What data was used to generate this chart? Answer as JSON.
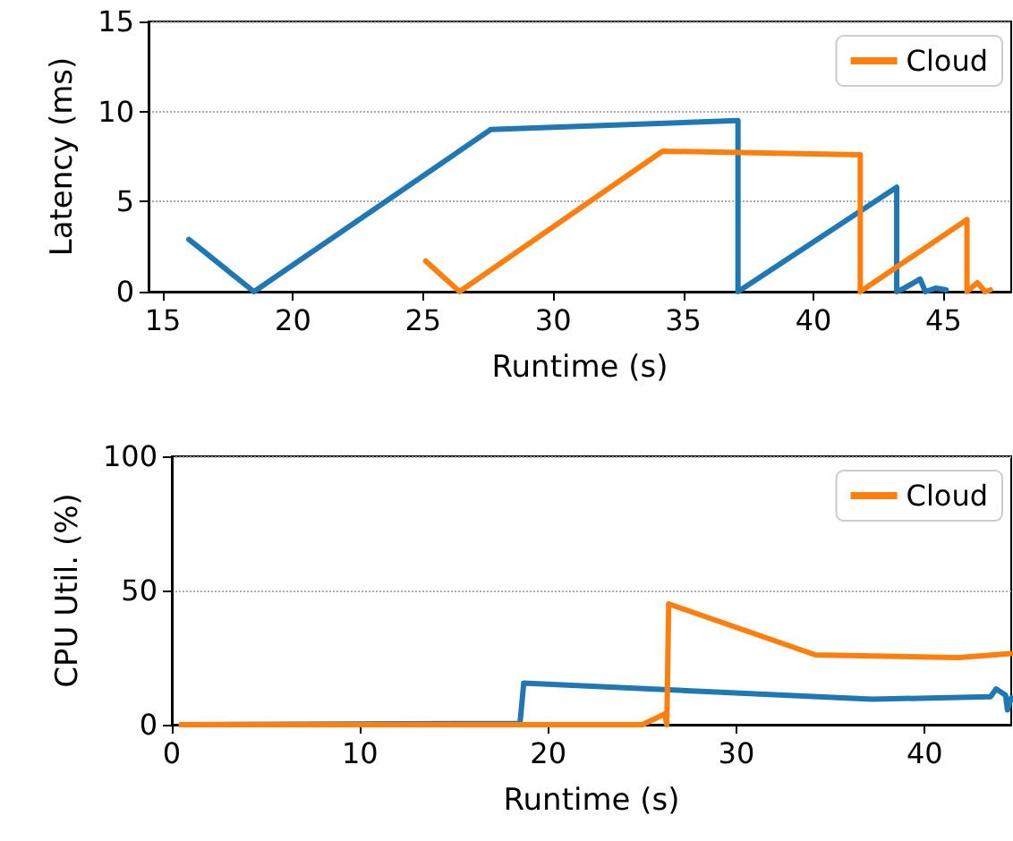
{
  "chart_data": [
    {
      "type": "line",
      "xlabel": "Runtime (s)",
      "ylabel": "Latency (ms)",
      "xlim": [
        14.45,
        47.6
      ],
      "xticks": [
        15,
        20,
        25,
        30,
        35,
        40,
        45
      ],
      "ylim": [
        0,
        15
      ],
      "yticks": [
        0,
        5,
        10,
        15
      ],
      "grid": "y",
      "legend": "top right",
      "series": [
        {
          "color": "#1f77b4",
          "x": [
            16,
            18.5,
            27.6,
            37.1,
            37.1,
            43.2,
            43.2,
            43.5,
            44.1,
            44.3,
            44.7,
            45.1
          ],
          "values": [
            2.9,
            0,
            9.0,
            9.5,
            0,
            5.8,
            0,
            0.2,
            0.7,
            0,
            0.2,
            0.1
          ]
        },
        {
          "name": "Cloud",
          "color": "#ff7f0e",
          "x": [
            25.1,
            26.4,
            34.2,
            41.8,
            41.8,
            45.9,
            45.9,
            46.3,
            46.6,
            46.8
          ],
          "values": [
            1.7,
            0,
            7.8,
            7.6,
            0,
            4.0,
            0,
            0.5,
            0,
            0.1
          ]
        }
      ]
    },
    {
      "type": "line",
      "xlabel": "Runtime (s)",
      "ylabel": "CPU Util. (%)",
      "xlim": [
        0,
        44.6
      ],
      "xticks": [
        0,
        10,
        20,
        30,
        40
      ],
      "ylim": [
        0,
        100
      ],
      "yticks": [
        0,
        50,
        100
      ],
      "grid": "y",
      "legend": "top right",
      "series": [
        {
          "color": "#1f77b4",
          "x": [
            0.5,
            18.5,
            18.7,
            37.2,
            43.5,
            43.8,
            44.3,
            44.4,
            44.6
          ],
          "values": [
            0,
            0.5,
            15.5,
            9.5,
            10.4,
            13.3,
            11,
            5.5,
            10
          ]
        },
        {
          "name": "Cloud",
          "color": "#ff7f0e",
          "x": [
            0.5,
            25,
            26.2,
            26.3,
            26.4,
            34.2,
            41.8,
            44.6
          ],
          "values": [
            0,
            0,
            4,
            0,
            45,
            26,
            25,
            26.5
          ]
        }
      ]
    }
  ]
}
